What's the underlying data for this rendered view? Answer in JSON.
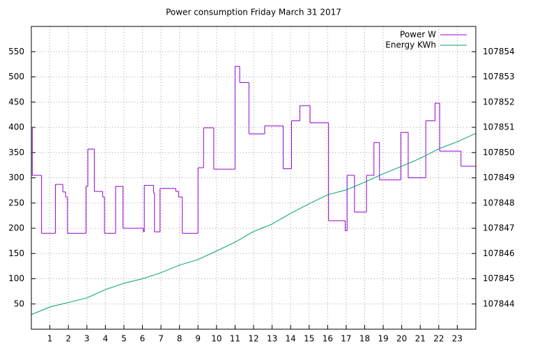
{
  "chart_data": {
    "type": "line",
    "title": "Power consumption Friday March 31 2017",
    "xlim": [
      0,
      24
    ],
    "xticks": [
      1,
      2,
      3,
      4,
      5,
      6,
      7,
      8,
      9,
      10,
      11,
      12,
      13,
      14,
      15,
      16,
      17,
      18,
      19,
      20,
      21,
      22,
      23
    ],
    "ylim": [
      0,
      600
    ],
    "yticks": [
      50,
      100,
      150,
      200,
      250,
      300,
      350,
      400,
      450,
      500,
      550
    ],
    "y2lim": [
      107843,
      107855
    ],
    "y2ticks": [
      107844,
      107845,
      107846,
      107847,
      107848,
      107849,
      107850,
      107851,
      107852,
      107853,
      107854
    ],
    "grid": true,
    "legend": "top-right",
    "series": [
      {
        "name": "Power W",
        "color": "#9400d3",
        "steps": true,
        "x": [
          0,
          0.05,
          0.55,
          1.3,
          1.7,
          1.85,
          1.95,
          2.95,
          3.05,
          3.4,
          3.85,
          3.95,
          4.55,
          4.95,
          6.05,
          6.1,
          6.6,
          6.65,
          6.95,
          7.8,
          7.95,
          8.15,
          9.0,
          9.3,
          9.85,
          11.0,
          11.25,
          11.75,
          12.6,
          13.6,
          14.05,
          14.5,
          15.05,
          16.05,
          16.95,
          17.05,
          17.45,
          18.1,
          18.5,
          18.8,
          19.95,
          20.35,
          21.3,
          21.8,
          22.05,
          23.2
        ],
        "values": [
          400,
          305,
          190,
          287,
          272,
          262,
          190,
          283,
          357,
          273,
          262,
          190,
          283,
          200,
          193,
          285,
          270,
          193,
          279,
          273,
          262,
          190,
          320,
          399,
          317,
          521,
          489,
          387,
          403,
          318,
          413,
          443,
          409,
          215,
          195,
          305,
          232,
          305,
          370,
          296,
          390,
          300,
          413,
          448,
          353,
          323
        ]
      },
      {
        "name": "Energy KWh",
        "color": "#009e73",
        "axis": "y2",
        "x": [
          0,
          1,
          3,
          4,
          5,
          6,
          7,
          8,
          9,
          10,
          11,
          12,
          13,
          14,
          15,
          16,
          17,
          18,
          19,
          20,
          21,
          22,
          23,
          24
        ],
        "values": [
          107843.58,
          107843.88,
          107844.24,
          107844.57,
          107844.82,
          107845.0,
          107845.24,
          107845.54,
          107845.76,
          107846.1,
          107846.45,
          107846.87,
          107847.17,
          107847.59,
          107847.97,
          107848.33,
          107848.52,
          107848.83,
          107849.16,
          107849.46,
          107849.77,
          107850.15,
          107850.43,
          107850.76
        ]
      }
    ]
  }
}
